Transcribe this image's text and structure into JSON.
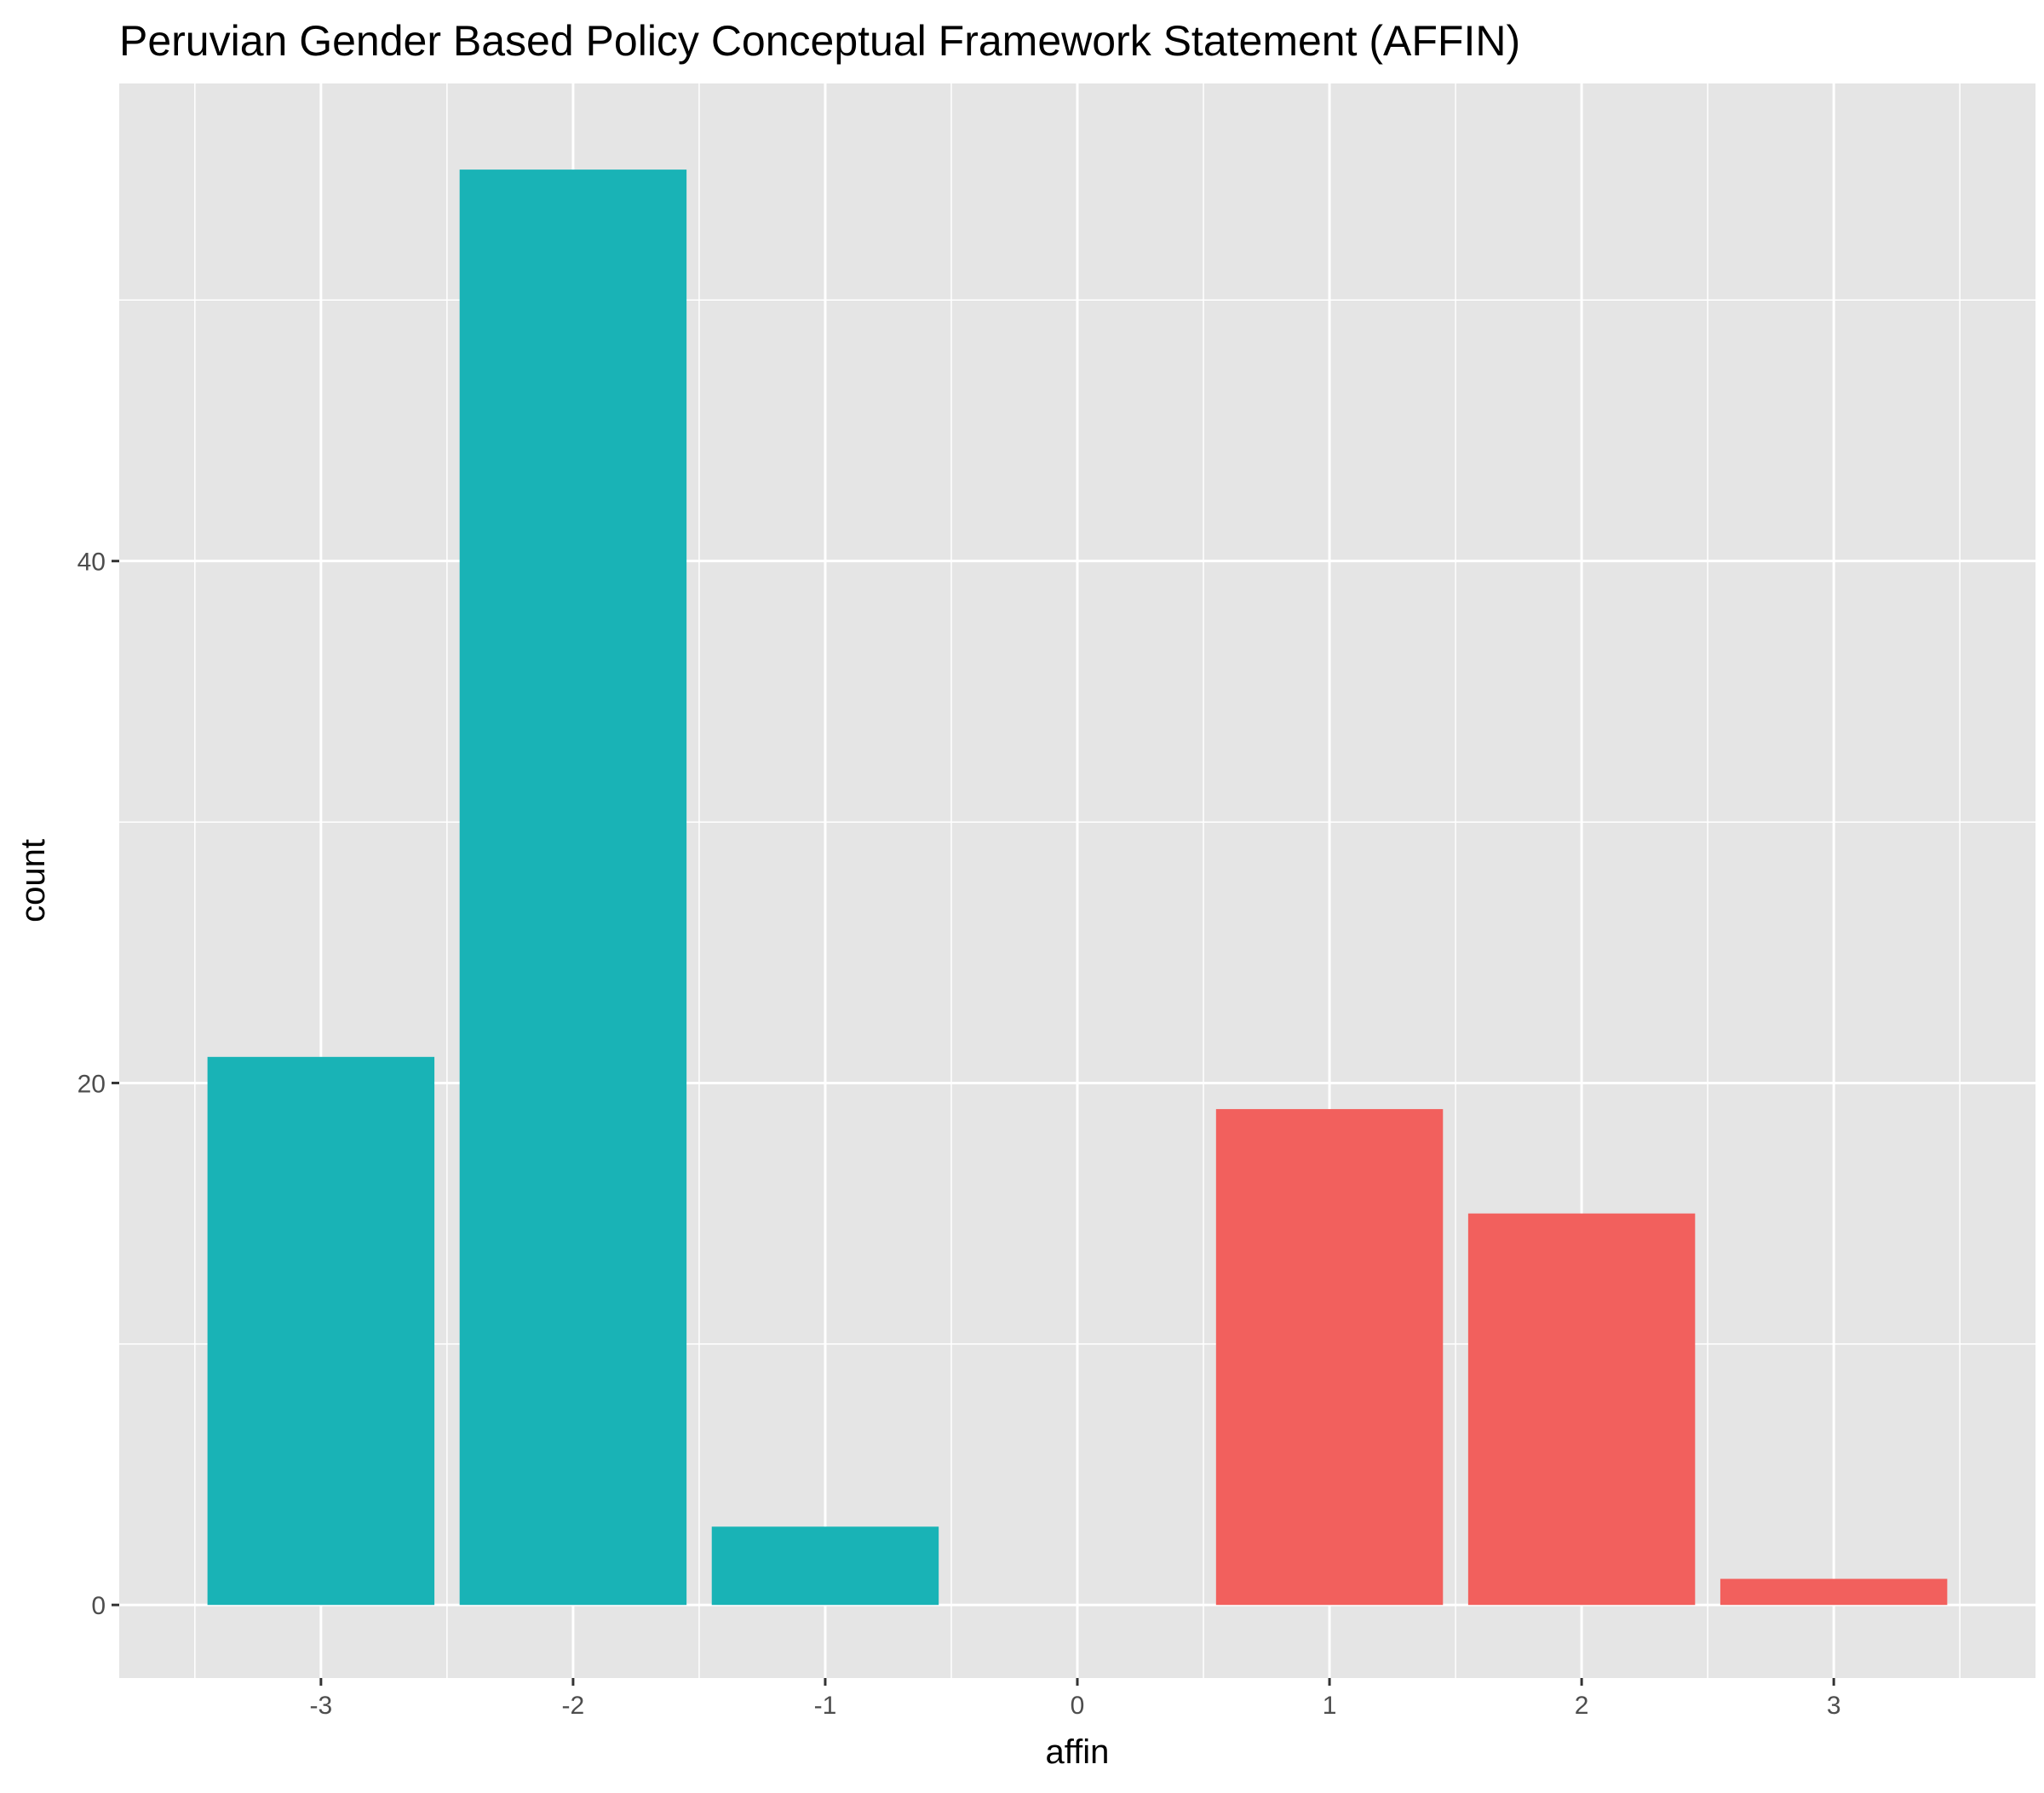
{
  "chart_data": {
    "type": "bar",
    "title": "Peruvian Gender Based Policy Conceptual Framework Statement (AFFIN)",
    "xlabel": "affin",
    "ylabel": "count",
    "x_ticks": [
      "-3",
      "-2",
      "-1",
      "0",
      "1",
      "2",
      "3"
    ],
    "y_ticks": [
      "0",
      "20",
      "40"
    ],
    "xlim": [
      -3.8,
      3.8
    ],
    "ylim": [
      -2.8,
      58.3
    ],
    "grid": true,
    "legend": "none",
    "categories": [
      -3,
      -2,
      -1,
      1,
      2,
      3
    ],
    "values": [
      21,
      55,
      3,
      19,
      15,
      1
    ],
    "bar_colors": [
      "#19B3B6",
      "#19B3B6",
      "#19B3B6",
      "#F2605D",
      "#F2605D",
      "#F2605D"
    ],
    "panel_background": "#E5E5E5",
    "grid_color": "#FFFFFF"
  }
}
